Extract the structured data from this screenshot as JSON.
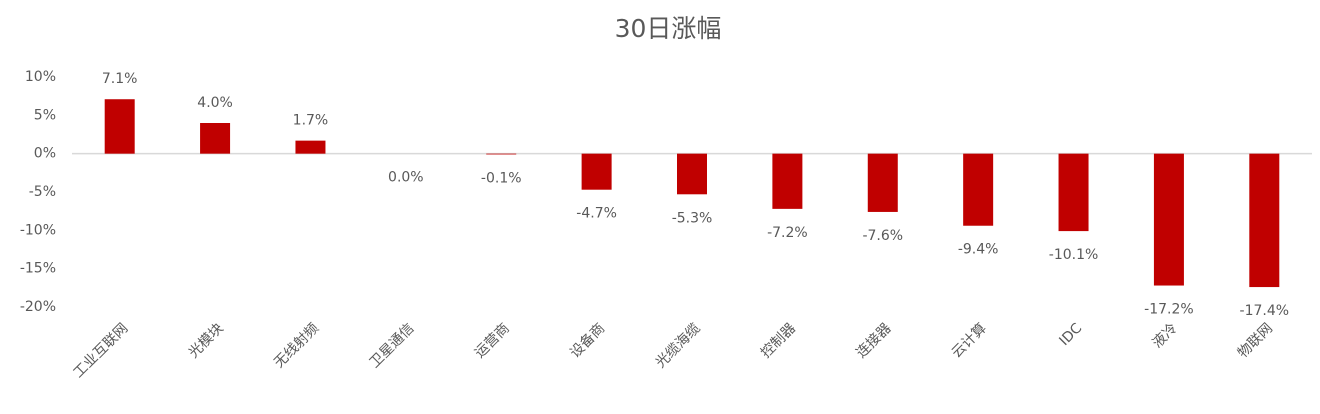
{
  "chart_data": {
    "type": "bar",
    "title": "30日涨幅",
    "categories": [
      "工业互联网",
      "光模块",
      "无线射频",
      "卫星通信",
      "运营商",
      "设备商",
      "光缆海缆",
      "控制器",
      "连接器",
      "云计算",
      "IDC",
      "液冷",
      "物联网"
    ],
    "values": [
      7.1,
      4.0,
      1.7,
      0.0,
      -0.1,
      -4.7,
      -5.3,
      -7.2,
      -7.6,
      -9.4,
      -10.1,
      -17.2,
      -17.4
    ],
    "value_labels": [
      "7.1%",
      "4.0%",
      "1.7%",
      "0.0%",
      "-0.1%",
      "-4.7%",
      "-5.3%",
      "-7.2%",
      "-7.6%",
      "-9.4%",
      "-10.1%",
      "-17.2%",
      "-17.4%"
    ],
    "color": "#c00000",
    "ylim": [
      -20,
      10
    ],
    "yticks": [
      {
        "value": 10,
        "label": "10%"
      },
      {
        "value": 5,
        "label": "5%"
      },
      {
        "value": 0,
        "label": "0%"
      },
      {
        "value": -5,
        "label": "-5%"
      },
      {
        "value": -10,
        "label": "-10%"
      },
      {
        "value": -15,
        "label": "-15%"
      },
      {
        "value": -20,
        "label": "-20%"
      }
    ],
    "grid": false
  }
}
